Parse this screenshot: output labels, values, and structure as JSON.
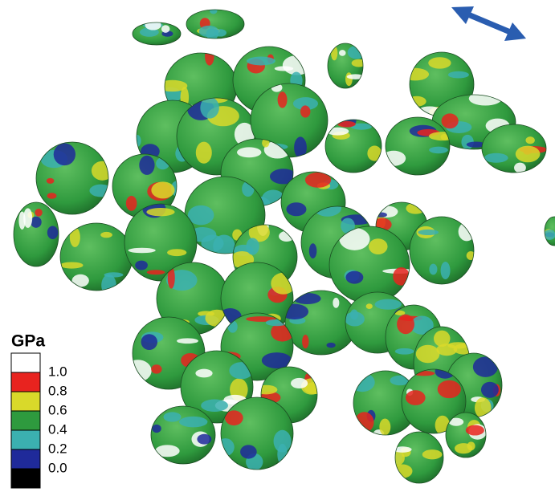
{
  "legend": {
    "title": "GPa",
    "colors": [
      "#ffffff",
      "#e8231f",
      "#d9d92a",
      "#2e9a3e",
      "#3bb0b0",
      "#1f2a9a",
      "#000000"
    ],
    "labels": [
      "1.0",
      "0.8",
      "0.6",
      "0.4",
      "0.2",
      "0.0"
    ]
  }
}
